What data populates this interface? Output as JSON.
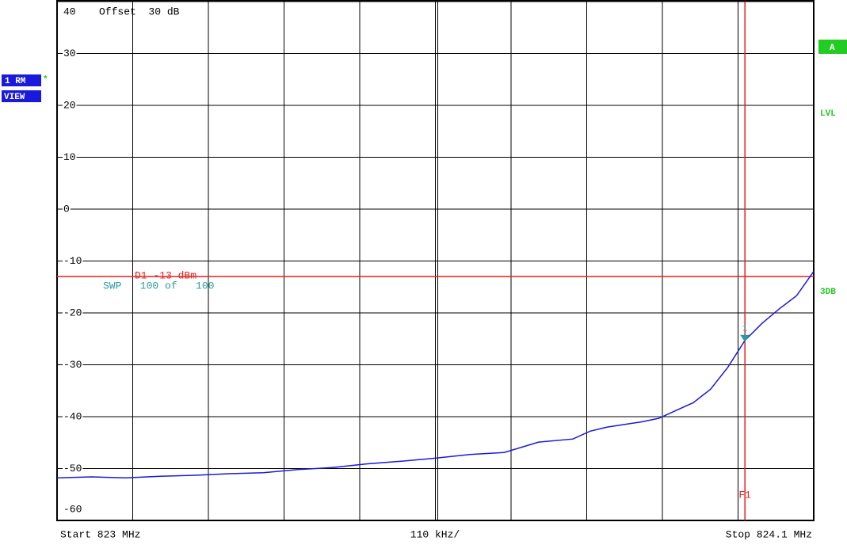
{
  "chart_data": {
    "type": "line",
    "x": [
      823.0,
      823.05,
      823.1,
      823.15,
      823.2,
      823.25,
      823.3,
      823.35,
      823.4,
      823.45,
      823.5,
      823.55,
      823.6,
      823.65,
      823.7,
      823.75,
      823.775,
      823.8,
      823.85,
      823.875,
      823.9,
      823.925,
      823.95,
      823.975,
      824.0,
      824.025,
      824.05,
      824.075,
      824.1
    ],
    "series": [
      {
        "color": "#1a1adc",
        "values": [
          -51.8,
          -51.6,
          -51.8,
          -51.5,
          -51.3,
          -51.0,
          -50.8,
          -50.2,
          -49.8,
          -49.1,
          -48.6,
          -48.0,
          -47.3,
          -46.9,
          -44.9,
          -44.3,
          -42.8,
          -42.0,
          -41.0,
          -40.3,
          -38.8,
          -37.3,
          -34.7,
          -30.5,
          -25.3,
          -22.0,
          -19.2,
          -16.7,
          -12.0
        ]
      }
    ],
    "xlim": [
      823.0,
      824.1
    ],
    "xticks": [
      {
        "value": 823.0,
        "label": "Start 823 MHz"
      },
      {
        "value": 824.1,
        "label": "Stop 824.1 MHz"
      }
    ],
    "ylim": [
      -60,
      40
    ],
    "yticks": [
      -60,
      -50,
      -40,
      -30,
      -20,
      -10,
      0,
      10,
      20,
      30,
      40
    ],
    "grid": true,
    "reference_lines": [
      {
        "value": -13,
        "label": "D1 -13 dBm",
        "color": "#e8201c"
      }
    ],
    "vertical_lines": [
      {
        "value": 824.0,
        "label": "F1",
        "color": "#e8201c"
      }
    ],
    "markers": [
      {
        "label": "1",
        "x": 824.0,
        "y": -25,
        "color": "#2a9a9a"
      }
    ],
    "offset_label": "Offset  30 dB",
    "sweep_label": "SWP   100 of   100",
    "division_label": "110 kHz/",
    "status": {
      "trace": "1 RM",
      "star": "*",
      "view": "VIEW",
      "a": "A",
      "lvl": "LVL",
      "db3": "3DB"
    }
  }
}
